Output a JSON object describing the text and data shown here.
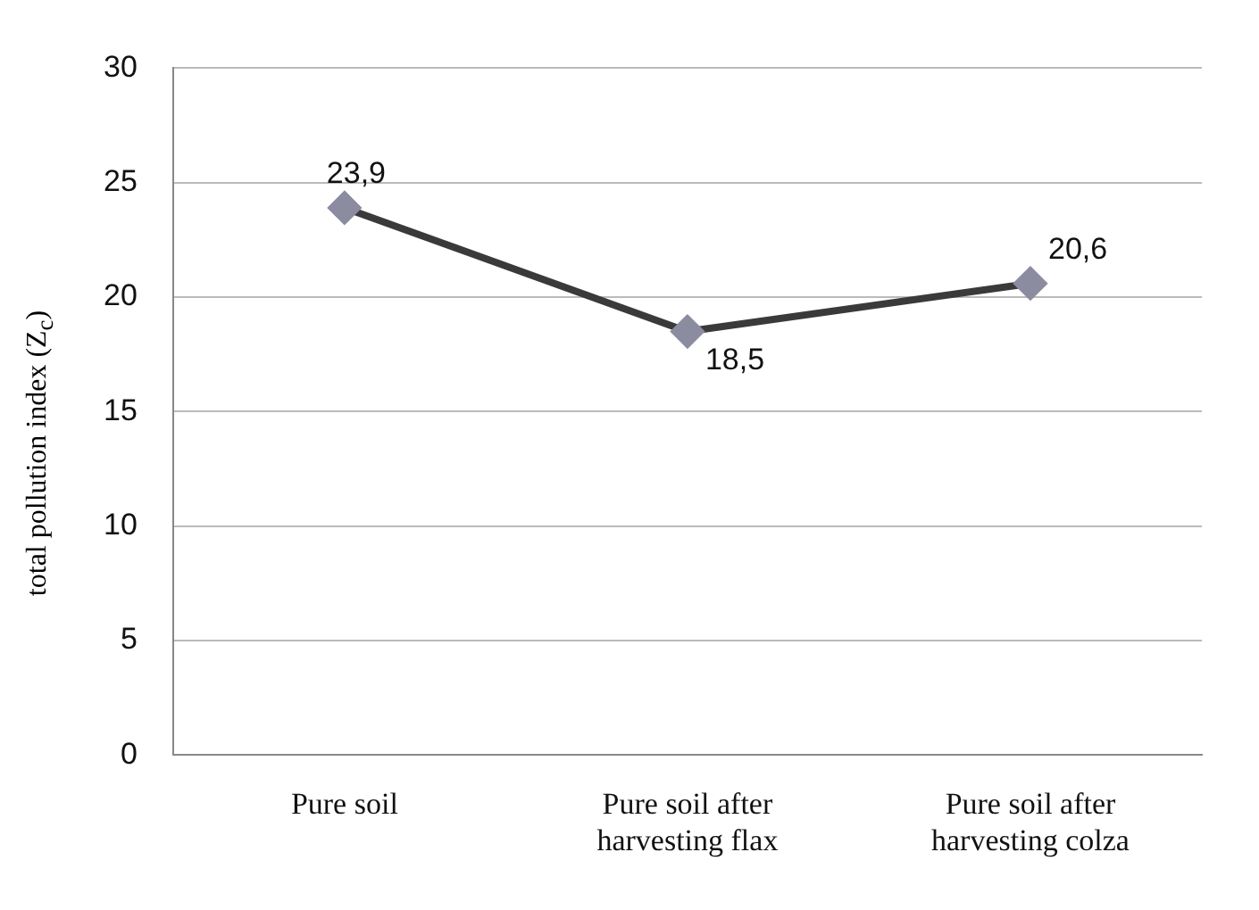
{
  "chart_data": {
    "type": "line",
    "ylabel": "total pollution index (Z$_{c}$)",
    "categories": [
      "Pure soil",
      "Pure soil after harvesting flax",
      "Pure soil after harvesting colza"
    ],
    "series": [
      {
        "color": "#3a3a3a",
        "values": [
          23.9,
          18.5,
          20.6
        ],
        "value_labels": [
          "23,9",
          "18,5",
          "20,6"
        ]
      }
    ],
    "ylim": [
      0,
      30
    ],
    "yticks": [
      0,
      5,
      10,
      15,
      20,
      25,
      30
    ],
    "grid": "y",
    "marker": "diamond",
    "line_style": "solid",
    "legend": false
  }
}
